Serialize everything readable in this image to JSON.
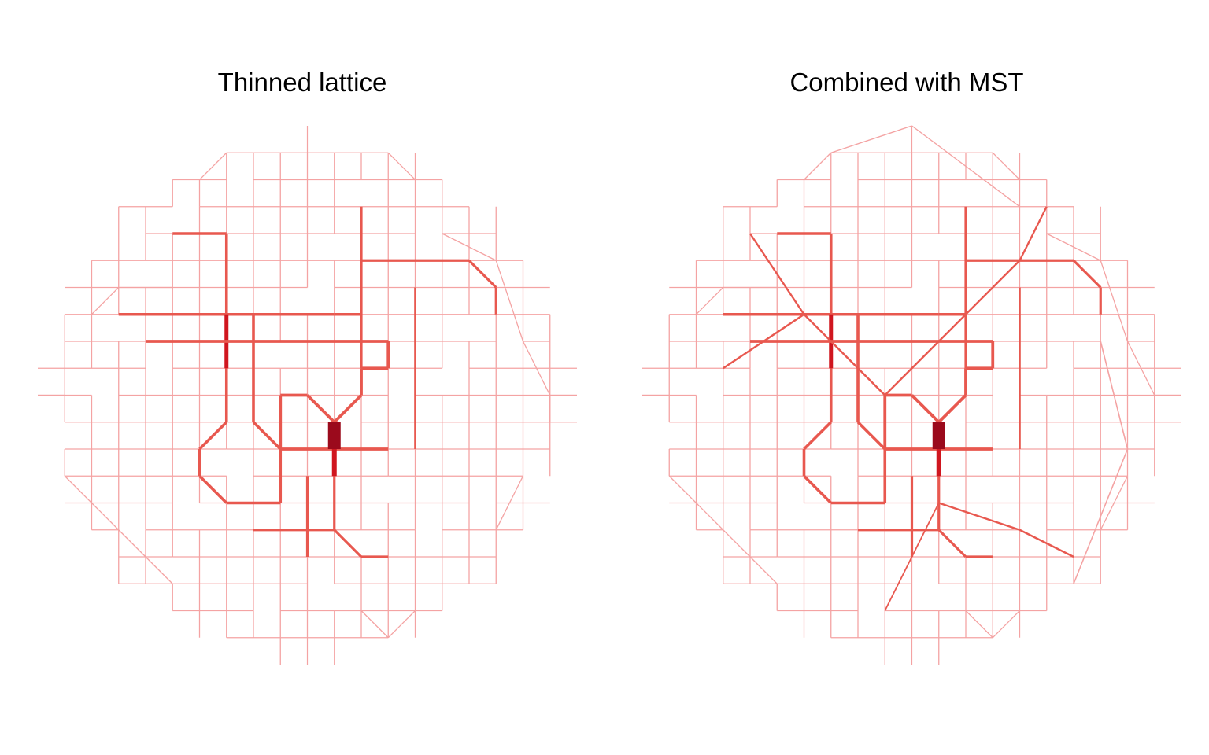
{
  "figure": {
    "panels": [
      {
        "title": "Thinned lattice"
      },
      {
        "title": "Combined with MST"
      }
    ]
  },
  "colors": {
    "background": "#ffffff",
    "edge_light": "#f4a3a3",
    "edge_mid": "#e8584f",
    "edge_strong": "#d0161f",
    "edge_max": "#9b0a1c"
  }
}
